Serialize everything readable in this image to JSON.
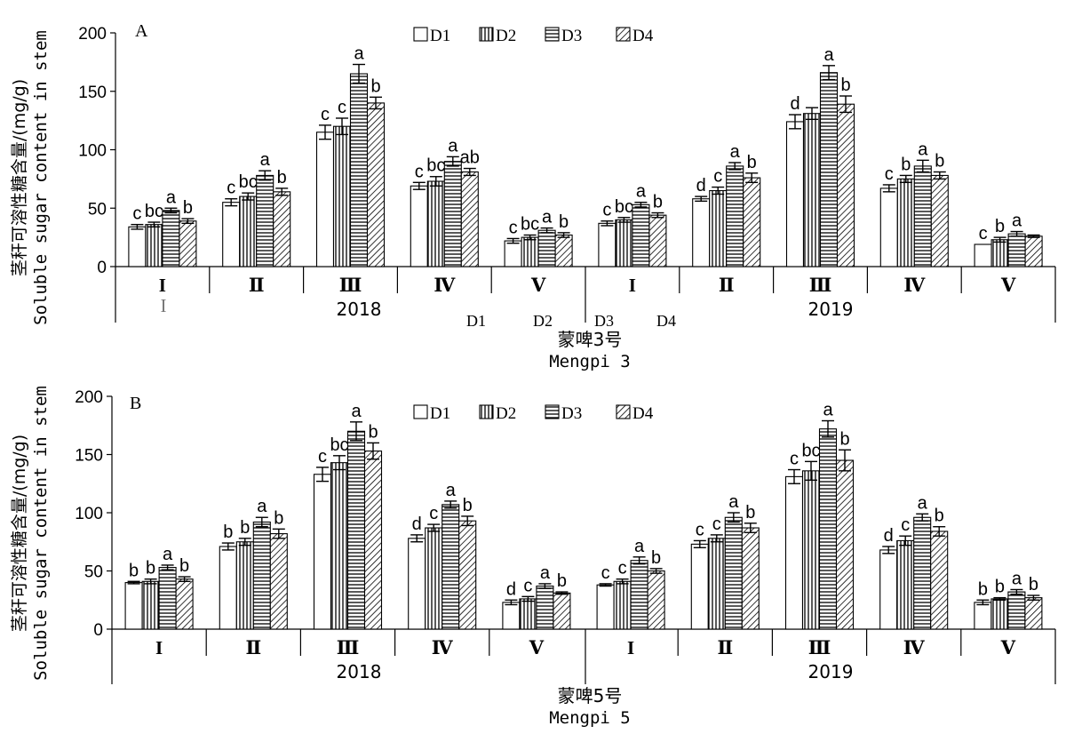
{
  "chart_data": [
    {
      "type": "bar",
      "panel_label": "A",
      "ylabel_cn": "茎秆可溶性糖含量/(mg/g)",
      "ylabel_en": "Soluble sugar content in stem",
      "ylim": [
        0,
        200
      ],
      "yticks": [
        "0",
        "50",
        "100",
        "150",
        "200"
      ],
      "cultivar_cn": "蒙啤3号",
      "cultivar_en": "Mengpi 3",
      "years": [
        "2018",
        "2019"
      ],
      "stages": [
        "I",
        "II",
        "III",
        "IV",
        "V"
      ],
      "stray_marks": [
        "D1",
        "D2",
        "D3",
        "D4"
      ],
      "stray_tick": "I",
      "legend": [
        "D1",
        "D2",
        "D3",
        "D4"
      ],
      "series": [
        {
          "name": "D1",
          "values": [
            34,
            55,
            115,
            69,
            22,
            37,
            58,
            124,
            67,
            19
          ],
          "errors": [
            2,
            3,
            6,
            3,
            2,
            2,
            2,
            6,
            3,
            0
          ]
        },
        {
          "name": "D2",
          "values": [
            36,
            60,
            120,
            73,
            25,
            40,
            65,
            131,
            75,
            23
          ],
          "errors": [
            2,
            3,
            7,
            4,
            2,
            2,
            3,
            5,
            3,
            2
          ]
        },
        {
          "name": "D3",
          "values": [
            48,
            78,
            165,
            90,
            31,
            53,
            86,
            166,
            86,
            28
          ],
          "errors": [
            2,
            4,
            8,
            4,
            2,
            2,
            3,
            6,
            5,
            2
          ]
        },
        {
          "name": "D4",
          "values": [
            39,
            64,
            140,
            81,
            27,
            44,
            76,
            139,
            78,
            26
          ],
          "errors": [
            2,
            3,
            5,
            3,
            2,
            2,
            4,
            7,
            3,
            1
          ]
        }
      ],
      "letters": [
        [
          "c",
          "c",
          "c",
          "c",
          "c",
          "c",
          "d",
          "d",
          "c",
          "c"
        ],
        [
          "bc",
          "bc",
          "c",
          "bc",
          "bc",
          "bc",
          "c",
          "",
          "b",
          "b"
        ],
        [
          "a",
          "a",
          "a",
          "a",
          "a",
          "a",
          "a",
          "a",
          "a",
          "a"
        ],
        [
          "b",
          "b",
          "b",
          "ab",
          "b",
          "b",
          "b",
          "b",
          "b",
          ""
        ]
      ]
    },
    {
      "type": "bar",
      "panel_label": "B",
      "ylabel_cn": "茎秆可溶性糖含量/(mg/g)",
      "ylabel_en": "Soluble sugar content in stem",
      "ylim": [
        0,
        200
      ],
      "yticks": [
        "0",
        "50",
        "100",
        "150",
        "200"
      ],
      "cultivar_cn": "蒙啤5号",
      "cultivar_en": "Mengpi 5",
      "years": [
        "2018",
        "2019"
      ],
      "stages": [
        "I",
        "II",
        "III",
        "IV",
        "V"
      ],
      "legend": [
        "D1",
        "D2",
        "D3",
        "D4"
      ],
      "series": [
        {
          "name": "D1",
          "values": [
            40,
            71,
            133,
            78,
            23,
            38,
            73,
            131,
            68,
            23
          ],
          "errors": [
            1,
            3,
            6,
            3,
            2,
            1,
            3,
            6,
            3,
            2
          ]
        },
        {
          "name": "D2",
          "values": [
            41,
            75,
            143,
            87,
            26,
            41,
            78,
            136,
            76,
            26
          ],
          "errors": [
            2,
            3,
            6,
            3,
            2,
            2,
            3,
            8,
            4,
            1
          ]
        },
        {
          "name": "D3",
          "values": [
            53,
            92,
            170,
            107,
            37,
            59,
            96,
            172,
            96,
            32
          ],
          "errors": [
            2,
            4,
            8,
            3,
            2,
            3,
            4,
            7,
            3,
            2
          ]
        },
        {
          "name": "D4",
          "values": [
            43,
            82,
            153,
            93,
            31,
            50,
            87,
            145,
            84,
            27
          ],
          "errors": [
            2,
            4,
            7,
            4,
            1,
            2,
            4,
            9,
            4,
            2
          ]
        }
      ],
      "letters": [
        [
          "b",
          "b",
          "c",
          "d",
          "d",
          "c",
          "c",
          "c",
          "d",
          "b"
        ],
        [
          "b",
          "b",
          "bc",
          "c",
          "c",
          "c",
          "c",
          "bc",
          "c",
          "b"
        ],
        [
          "a",
          "a",
          "a",
          "a",
          "a",
          "a",
          "a",
          "a",
          "a",
          "a"
        ],
        [
          "b",
          "b",
          "b",
          "b",
          "b",
          "b",
          "b",
          "b",
          "b",
          "b"
        ]
      ]
    }
  ]
}
